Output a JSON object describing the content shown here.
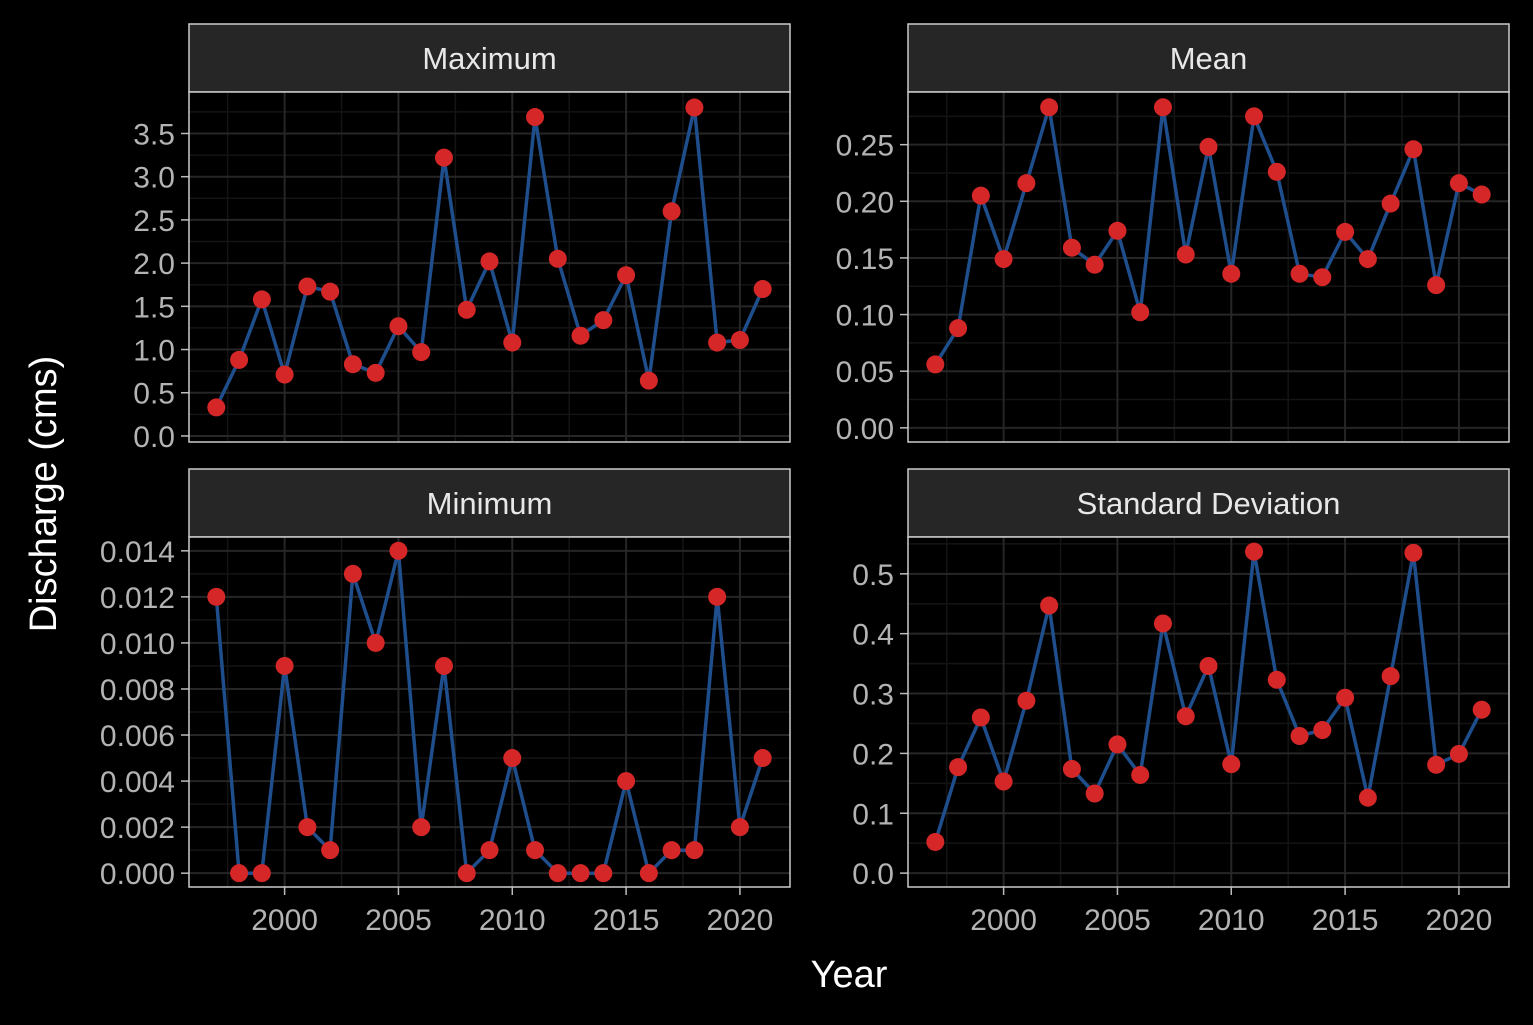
{
  "chart_data": {
    "type": "line",
    "xlabel": "Year",
    "ylabel": "Discharge (cms)",
    "line_color": "#1f4e8c",
    "point_color": "#d62728",
    "strip_color": "#262626",
    "x": [
      1997,
      1998,
      1999,
      2000,
      2001,
      2002,
      2003,
      2004,
      2005,
      2006,
      2007,
      2008,
      2009,
      2010,
      2011,
      2012,
      2013,
      2014,
      2015,
      2016,
      2017,
      2018,
      2019,
      2020,
      2021
    ],
    "x_ticks": [
      "2000",
      "2005",
      "2010",
      "2015",
      "2020"
    ],
    "panels": [
      {
        "title": "Maximum",
        "ylim": [
          -0.07,
          3.98
        ],
        "y_ticks": [
          "0.0",
          "0.5",
          "1.0",
          "1.5",
          "2.0",
          "2.5",
          "3.0",
          "3.5"
        ],
        "values": [
          0.33,
          0.88,
          1.58,
          0.71,
          1.73,
          1.67,
          0.83,
          0.73,
          1.27,
          0.97,
          3.22,
          1.46,
          2.02,
          1.08,
          3.69,
          2.05,
          1.16,
          1.34,
          1.86,
          0.64,
          2.6,
          3.8,
          1.08,
          1.11,
          1.7
        ]
      },
      {
        "title": "Mean",
        "ylim": [
          -0.0125,
          0.2965
        ],
        "y_ticks": [
          "0.00",
          "0.05",
          "0.10",
          "0.15",
          "0.20",
          "0.25"
        ],
        "values": [
          0.056,
          0.088,
          0.205,
          0.149,
          0.216,
          0.283,
          0.159,
          0.144,
          0.174,
          0.102,
          0.283,
          0.153,
          0.248,
          0.136,
          0.275,
          0.226,
          0.136,
          0.133,
          0.173,
          0.149,
          0.198,
          0.246,
          0.126,
          0.216,
          0.206
        ]
      },
      {
        "title": "Minimum",
        "ylim": [
          -0.0006,
          0.0146
        ],
        "y_ticks": [
          "0.000",
          "0.002",
          "0.004",
          "0.006",
          "0.008",
          "0.010",
          "0.012",
          "0.014"
        ],
        "values": [
          0.012,
          0.0,
          0.0,
          0.009,
          0.002,
          0.001,
          0.013,
          0.01,
          0.014,
          0.002,
          0.009,
          0.0,
          0.001,
          0.005,
          0.001,
          0.0,
          0.0,
          0.0,
          0.004,
          0.0,
          0.001,
          0.001,
          0.012,
          0.002,
          0.005
        ]
      },
      {
        "title": "Standard Deviation",
        "ylim": [
          -0.0232,
          0.5615
        ],
        "y_ticks": [
          "0.0",
          "0.1",
          "0.2",
          "0.3",
          "0.4",
          "0.5"
        ],
        "values": [
          0.052,
          0.177,
          0.26,
          0.153,
          0.288,
          0.447,
          0.174,
          0.133,
          0.215,
          0.164,
          0.417,
          0.262,
          0.346,
          0.182,
          0.537,
          0.323,
          0.229,
          0.239,
          0.293,
          0.126,
          0.329,
          0.535,
          0.181,
          0.199,
          0.273
        ]
      }
    ]
  }
}
